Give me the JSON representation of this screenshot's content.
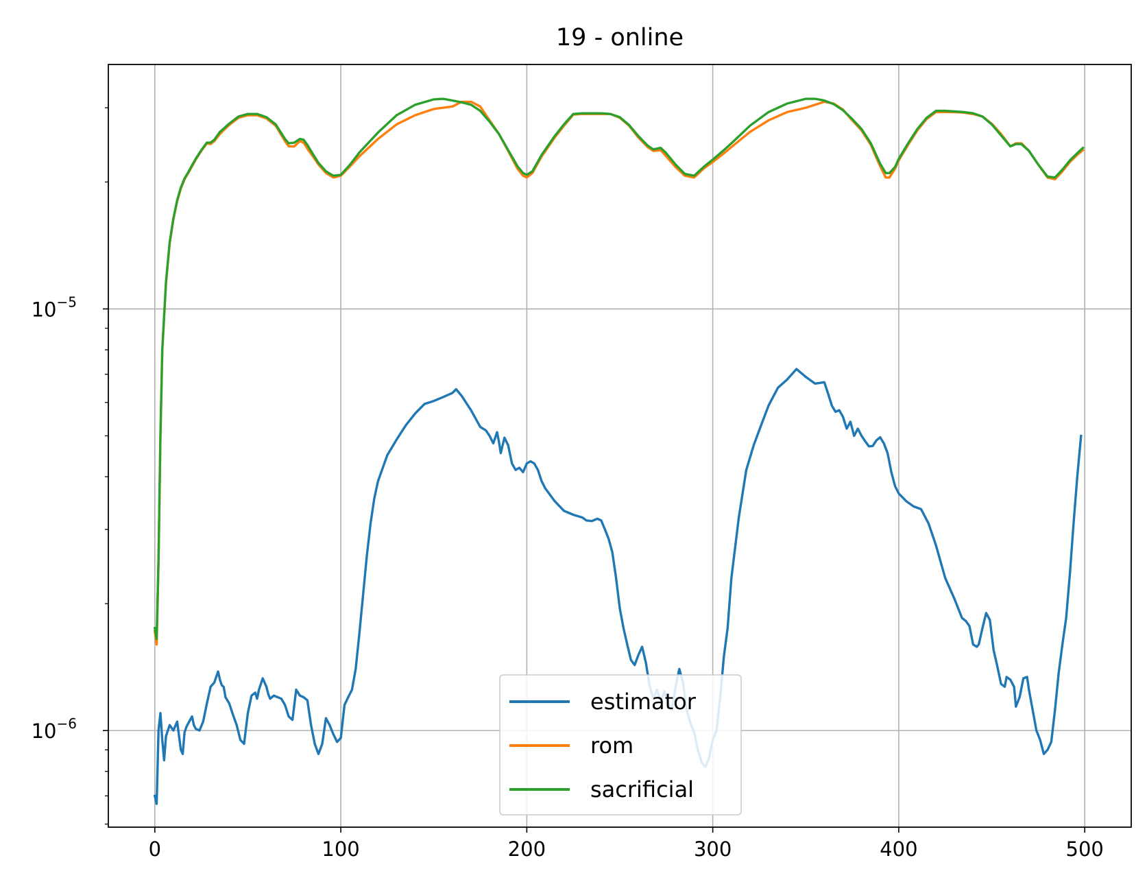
{
  "chart_data": {
    "type": "line",
    "title": "19 - online",
    "xlabel": "",
    "ylabel": "",
    "xlim": [
      -25,
      525
    ],
    "ylim": [
      5.9e-07,
      3.8e-05
    ],
    "yscale": "log",
    "grid": true,
    "legend_position": "lower center",
    "xticks": [
      0,
      100,
      200,
      300,
      400,
      500
    ],
    "xtick_labels": [
      "0",
      "100",
      "200",
      "300",
      "400",
      "500"
    ],
    "yticks": [
      1e-06,
      1e-05
    ],
    "ytick_labels": [
      {
        "base": "10",
        "exp": "−6"
      },
      {
        "base": "10",
        "exp": "−5"
      }
    ],
    "colors": {
      "estimator": "#1f77b4",
      "rom": "#ff7f0e",
      "sacrificial": "#2ca02c"
    },
    "series": [
      {
        "name": "estimator",
        "color": "#1f77b4",
        "x": [
          0,
          1,
          2,
          3,
          4,
          5,
          6,
          7,
          8,
          10,
          12,
          14,
          15,
          16,
          17,
          18,
          20,
          21,
          22,
          24,
          26,
          28,
          30,
          32,
          34,
          35,
          36,
          37,
          38,
          40,
          42,
          44,
          46,
          48,
          50,
          52,
          54,
          55,
          56,
          58,
          60,
          61,
          62,
          64,
          66,
          68,
          70,
          72,
          74,
          76,
          78,
          80,
          82,
          84,
          86,
          88,
          90,
          92,
          94,
          96,
          98,
          100,
          102,
          104,
          106,
          108,
          110,
          112,
          114,
          116,
          118,
          120,
          125,
          130,
          135,
          140,
          145,
          150,
          155,
          160,
          162,
          165,
          170,
          175,
          178,
          180,
          182,
          184,
          185,
          186,
          188,
          190,
          192,
          194,
          196,
          198,
          200,
          202,
          204,
          206,
          208,
          210,
          215,
          220,
          225,
          230,
          232,
          235,
          238,
          240,
          242,
          244,
          246,
          248,
          250,
          252,
          254,
          256,
          258,
          260,
          262,
          264,
          266,
          268,
          270,
          272,
          274,
          276,
          278,
          280,
          282,
          284,
          286,
          288,
          290,
          292,
          294,
          296,
          298,
          300,
          302,
          304,
          306,
          308,
          310,
          314,
          318,
          322,
          326,
          330,
          335,
          340,
          345,
          350,
          355,
          360,
          362,
          364,
          366,
          368,
          370,
          372,
          374,
          376,
          378,
          380,
          382,
          384,
          386,
          388,
          390,
          392,
          394,
          396,
          398,
          400,
          404,
          408,
          412,
          416,
          420,
          425,
          430,
          434,
          436,
          438,
          440,
          442,
          443,
          445,
          447,
          449,
          451,
          453,
          455,
          457,
          458,
          460,
          462,
          463,
          465,
          467,
          469,
          470,
          472,
          474,
          476,
          478,
          480,
          482,
          484,
          486,
          488,
          490,
          492,
          494,
          496,
          498
        ],
        "y": [
          7e-07,
          6.7e-07,
          1e-06,
          1.1e-06,
          9.5e-07,
          8.5e-07,
          9.7e-07,
          1e-06,
          1.03e-06,
          1e-06,
          1.05e-06,
          9e-07,
          8.8e-07,
          9.9e-07,
          1.02e-06,
          1.04e-06,
          1.08e-06,
          1.03e-06,
          1.01e-06,
          1e-06,
          1.05e-06,
          1.16e-06,
          1.27e-06,
          1.3e-06,
          1.38e-06,
          1.32e-06,
          1.28e-06,
          1.27e-06,
          1.2e-06,
          1.16e-06,
          1.09e-06,
          1.03e-06,
          9.5e-07,
          9.3e-07,
          1.1e-06,
          1.21e-06,
          1.23e-06,
          1.19e-06,
          1.25e-06,
          1.33e-06,
          1.27e-06,
          1.22e-06,
          1.19e-06,
          1.21e-06,
          1.2e-06,
          1.19e-06,
          1.15e-06,
          1.08e-06,
          1.06e-06,
          1.25e-06,
          1.21e-06,
          1.2e-06,
          1.18e-06,
          1.03e-06,
          9.3e-07,
          8.8e-07,
          9.3e-07,
          1.07e-06,
          1.03e-06,
          9.8e-07,
          9.4e-07,
          9.6e-07,
          1.15e-06,
          1.2e-06,
          1.25e-06,
          1.4e-06,
          1.7e-06,
          2.1e-06,
          2.6e-06,
          3.1e-06,
          3.55e-06,
          3.9e-06,
          4.5e-06,
          4.9e-06,
          5.3e-06,
          5.65e-06,
          5.95e-06,
          6.05e-06,
          6.18e-06,
          6.32e-06,
          6.45e-06,
          6.22e-06,
          5.75e-06,
          5.25e-06,
          5.15e-06,
          5e-06,
          4.8e-06,
          5.1e-06,
          4.85e-06,
          4.55e-06,
          4.95e-06,
          4.75e-06,
          4.3e-06,
          4.15e-06,
          4.2e-06,
          4.1e-06,
          4.3e-06,
          4.35e-06,
          4.3e-06,
          4.15e-06,
          3.9e-06,
          3.75e-06,
          3.5e-06,
          3.32e-06,
          3.25e-06,
          3.2e-06,
          3.15e-06,
          3.14e-06,
          3.18e-06,
          3.15e-06,
          3e-06,
          2.85e-06,
          2.65e-06,
          2.3e-06,
          1.95e-06,
          1.75e-06,
          1.6e-06,
          1.47e-06,
          1.43e-06,
          1.51e-06,
          1.58e-06,
          1.45e-06,
          1.28e-06,
          1.19e-06,
          1.25e-06,
          1.17e-06,
          1.24e-06,
          1.16e-06,
          1.12e-06,
          1.27e-06,
          1.4e-06,
          1.3e-06,
          1.12e-06,
          1.04e-06,
          9.9e-07,
          9e-07,
          8.4e-07,
          8.2e-07,
          8.6e-07,
          9.5e-07,
          1e-06,
          1.2e-06,
          1.5e-06,
          1.75e-06,
          2.3e-06,
          3.2e-06,
          4.15e-06,
          4.75e-06,
          5.3e-06,
          5.9e-06,
          6.5e-06,
          6.8e-06,
          7.2e-06,
          6.9e-06,
          6.65e-06,
          6.7e-06,
          6.3e-06,
          5.9e-06,
          5.7e-06,
          5.75e-06,
          5.55e-06,
          5.2e-06,
          5.4e-06,
          5e-06,
          5.2e-06,
          5e-06,
          4.85e-06,
          4.72e-06,
          4.73e-06,
          4.88e-06,
          4.96e-06,
          4.8e-06,
          4.55e-06,
          4.1e-06,
          3.8e-06,
          3.65e-06,
          3.5e-06,
          3.4e-06,
          3.35e-06,
          3.1e-06,
          2.75e-06,
          2.3e-06,
          2.05e-06,
          1.85e-06,
          1.82e-06,
          1.77e-06,
          1.6e-06,
          1.58e-06,
          1.6e-06,
          1.75e-06,
          1.9e-06,
          1.83e-06,
          1.55e-06,
          1.42e-06,
          1.29e-06,
          1.27e-06,
          1.34e-06,
          1.32e-06,
          1.27e-06,
          1.14e-06,
          1.2e-06,
          1.33e-06,
          1.34e-06,
          1.25e-06,
          1.12e-06,
          1e-06,
          9.5e-07,
          8.8e-07,
          9e-07,
          9.4e-07,
          1.12e-06,
          1.37e-06,
          1.6e-06,
          1.85e-06,
          2.35e-06,
          3.1e-06,
          4e-06,
          5e-06
        ]
      },
      {
        "name": "rom",
        "color": "#ff7f0e",
        "x": [
          0,
          1,
          2,
          3,
          4,
          6,
          8,
          10,
          12,
          14,
          16,
          18,
          20,
          22,
          25,
          28,
          30,
          32,
          35,
          38,
          40,
          45,
          50,
          55,
          60,
          65,
          70,
          72,
          75,
          78,
          80,
          82,
          85,
          88,
          92,
          96,
          100,
          105,
          110,
          120,
          130,
          140,
          150,
          160,
          165,
          170,
          175,
          180,
          185,
          190,
          195,
          198,
          200,
          203,
          208,
          215,
          220,
          225,
          230,
          235,
          240,
          245,
          250,
          255,
          260,
          265,
          268,
          272,
          275,
          280,
          285,
          290,
          295,
          300,
          305,
          310,
          320,
          330,
          340,
          350,
          360,
          365,
          370,
          375,
          380,
          385,
          390,
          393,
          395,
          398,
          400,
          405,
          410,
          415,
          420,
          425,
          430,
          435,
          440,
          445,
          450,
          455,
          460,
          463,
          466,
          470,
          475,
          480,
          484,
          488,
          492,
          496,
          499
        ],
        "y": [
          1.72e-06,
          1.6e-06,
          2.5e-06,
          5e-06,
          8e-06,
          1.15e-05,
          1.43e-05,
          1.63e-05,
          1.8e-05,
          1.93e-05,
          2.03e-05,
          2.1e-05,
          2.18e-05,
          2.26e-05,
          2.37e-05,
          2.47e-05,
          2.46e-05,
          2.5e-05,
          2.6e-05,
          2.68e-05,
          2.73e-05,
          2.84e-05,
          2.88e-05,
          2.88e-05,
          2.83e-05,
          2.72e-05,
          2.5e-05,
          2.43e-05,
          2.43e-05,
          2.5e-05,
          2.48e-05,
          2.4e-05,
          2.3e-05,
          2.2e-05,
          2.1e-05,
          2.05e-05,
          2.07e-05,
          2.18e-05,
          2.3e-05,
          2.53e-05,
          2.74e-05,
          2.88e-05,
          2.98e-05,
          3.02e-05,
          3.1e-05,
          3.1e-05,
          3.02e-05,
          2.8e-05,
          2.6e-05,
          2.37e-05,
          2.15e-05,
          2.07e-05,
          2.05e-05,
          2.1e-05,
          2.3e-05,
          2.55e-05,
          2.72e-05,
          2.89e-05,
          2.9e-05,
          2.9e-05,
          2.9e-05,
          2.9e-05,
          2.84e-05,
          2.72e-05,
          2.55e-05,
          2.42e-05,
          2.37e-05,
          2.38e-05,
          2.3e-05,
          2.17e-05,
          2.07e-05,
          2.05e-05,
          2.15e-05,
          2.23e-05,
          2.32e-05,
          2.42e-05,
          2.63e-05,
          2.8e-05,
          2.93e-05,
          3e-05,
          3.1e-05,
          3.07e-05,
          2.97e-05,
          2.8e-05,
          2.65e-05,
          2.45e-05,
          2.18e-05,
          2.05e-05,
          2.05e-05,
          2.15e-05,
          2.25e-05,
          2.45e-05,
          2.65e-05,
          2.82e-05,
          2.93e-05,
          2.93e-05,
          2.93e-05,
          2.92e-05,
          2.9e-05,
          2.86e-05,
          2.75e-05,
          2.6e-05,
          2.43e-05,
          2.47e-05,
          2.47e-05,
          2.37e-05,
          2.2e-05,
          2.05e-05,
          2.03e-05,
          2.12e-05,
          2.23e-05,
          2.32e-05,
          2.38e-05
        ]
      },
      {
        "name": "sacrificial",
        "color": "#2ca02c",
        "x": [
          0,
          1,
          2,
          3,
          4,
          6,
          8,
          10,
          12,
          14,
          16,
          18,
          20,
          22,
          25,
          28,
          30,
          32,
          35,
          38,
          40,
          45,
          50,
          55,
          60,
          65,
          70,
          72,
          75,
          78,
          80,
          82,
          85,
          88,
          92,
          96,
          100,
          105,
          110,
          120,
          130,
          140,
          150,
          155,
          160,
          165,
          170,
          175,
          180,
          185,
          190,
          195,
          198,
          200,
          203,
          208,
          215,
          220,
          225,
          230,
          235,
          240,
          245,
          250,
          255,
          260,
          265,
          268,
          272,
          275,
          280,
          285,
          290,
          295,
          300,
          305,
          310,
          320,
          330,
          340,
          350,
          355,
          360,
          365,
          370,
          375,
          380,
          385,
          390,
          393,
          395,
          398,
          400,
          405,
          410,
          415,
          420,
          425,
          430,
          435,
          440,
          445,
          450,
          455,
          460,
          463,
          466,
          470,
          475,
          480,
          484,
          488,
          492,
          496,
          499
        ],
        "y": [
          1.75e-06,
          1.65e-06,
          2.55e-06,
          5e-06,
          8e-06,
          1.16e-05,
          1.44e-05,
          1.64e-05,
          1.81e-05,
          1.94e-05,
          2.04e-05,
          2.11e-05,
          2.19e-05,
          2.27e-05,
          2.38e-05,
          2.48e-05,
          2.48e-05,
          2.52e-05,
          2.63e-05,
          2.7e-05,
          2.75e-05,
          2.86e-05,
          2.9e-05,
          2.9e-05,
          2.85e-05,
          2.74e-05,
          2.53e-05,
          2.47e-05,
          2.48e-05,
          2.53e-05,
          2.52e-05,
          2.45e-05,
          2.33e-05,
          2.22e-05,
          2.12e-05,
          2.07e-05,
          2.08e-05,
          2.2e-05,
          2.35e-05,
          2.62e-05,
          2.88e-05,
          3.05e-05,
          3.14e-05,
          3.15e-05,
          3.12e-05,
          3.09e-05,
          3.05e-05,
          2.95e-05,
          2.78e-05,
          2.6e-05,
          2.38e-05,
          2.18e-05,
          2.1e-05,
          2.08e-05,
          2.12e-05,
          2.32e-05,
          2.57e-05,
          2.74e-05,
          2.9e-05,
          2.91e-05,
          2.91e-05,
          2.91e-05,
          2.9e-05,
          2.85e-05,
          2.73e-05,
          2.57e-05,
          2.44e-05,
          2.39e-05,
          2.41e-05,
          2.34e-05,
          2.2e-05,
          2.09e-05,
          2.07e-05,
          2.17e-05,
          2.26e-05,
          2.36e-05,
          2.47e-05,
          2.72e-05,
          2.93e-05,
          3.07e-05,
          3.15e-05,
          3.15e-05,
          3.12e-05,
          3.06e-05,
          2.96e-05,
          2.82e-05,
          2.67e-05,
          2.47e-05,
          2.21e-05,
          2.1e-05,
          2.1e-05,
          2.17e-05,
          2.27e-05,
          2.47e-05,
          2.67e-05,
          2.84e-05,
          2.95e-05,
          2.95e-05,
          2.94e-05,
          2.93e-05,
          2.91e-05,
          2.86e-05,
          2.74e-05,
          2.58e-05,
          2.43e-05,
          2.46e-05,
          2.46e-05,
          2.37e-05,
          2.2e-05,
          2.06e-05,
          2.05e-05,
          2.14e-05,
          2.25e-05,
          2.34e-05,
          2.41e-05
        ]
      }
    ]
  }
}
